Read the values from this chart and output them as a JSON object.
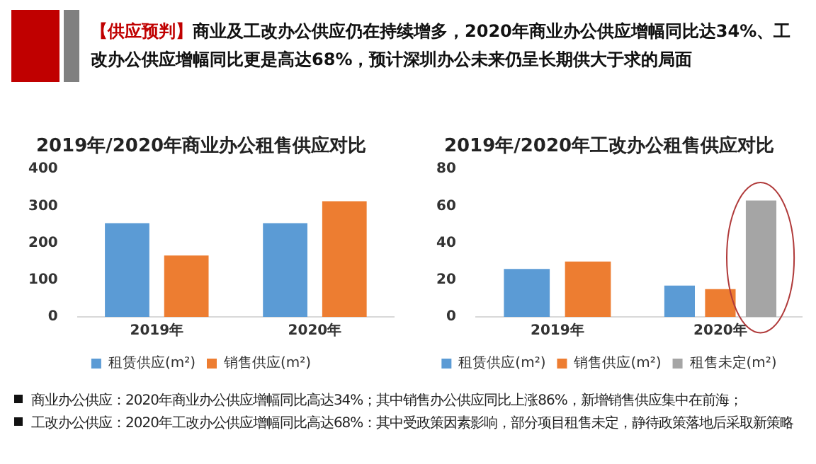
{
  "chart_data": [
    {
      "type": "other",
      "annotations": [
        "【供应预判】",
        "商业及工改办公供应仍在持续增多，2020年商业办公供应增幅同比达34%、工改办公供应增幅同比更是高达68%，预计深圳办公未来仍呈长期供大于求的局面"
      ]
    },
    {
      "type": "bar",
      "title": "2019年/2020年商业办公租售供应对比",
      "categories": [
        "2019年",
        "2020年"
      ],
      "series": [
        {
          "name": "租赁供应(m²)",
          "color": "#5b9bd5",
          "values": [
            254,
            254
          ]
        },
        {
          "name": "销售供应(m²)",
          "color": "#ed7d31",
          "values": [
            166,
            313
          ]
        }
      ],
      "ylim": [
        0,
        400
      ],
      "yticks": [
        0,
        100,
        200,
        300,
        400
      ],
      "grid": false,
      "legend": "bottom"
    },
    {
      "type": "bar",
      "title": "2019年/2020年工改办公租售供应对比",
      "categories": [
        "2019年",
        "2020年"
      ],
      "series": [
        {
          "name": "租赁供应(m²)",
          "color": "#5b9bd5",
          "values": [
            26,
            17
          ]
        },
        {
          "name": "销售供应(m²)",
          "color": "#ed7d31",
          "values": [
            30,
            15
          ]
        },
        {
          "name": "租售未定(m²)",
          "color": "#a5a5a5",
          "values": [
            null,
            63
          ]
        }
      ],
      "ylim": [
        0,
        80
      ],
      "yticks": [
        0,
        20,
        40,
        60,
        80
      ],
      "grid": false,
      "legend": "bottom"
    },
    {
      "type": "other",
      "annotations": [
        "商业办公供应：2020年商业办公供应增幅同比高达34%；其中销售办公供应同比上涨86%，新增销售供应集中在前海；",
        "工改办公供应：2020年工改办公供应增幅同比高达68%：其中受政策因素影响，部分项目租售未定，静待政策落地后采取新策略"
      ]
    }
  ]
}
